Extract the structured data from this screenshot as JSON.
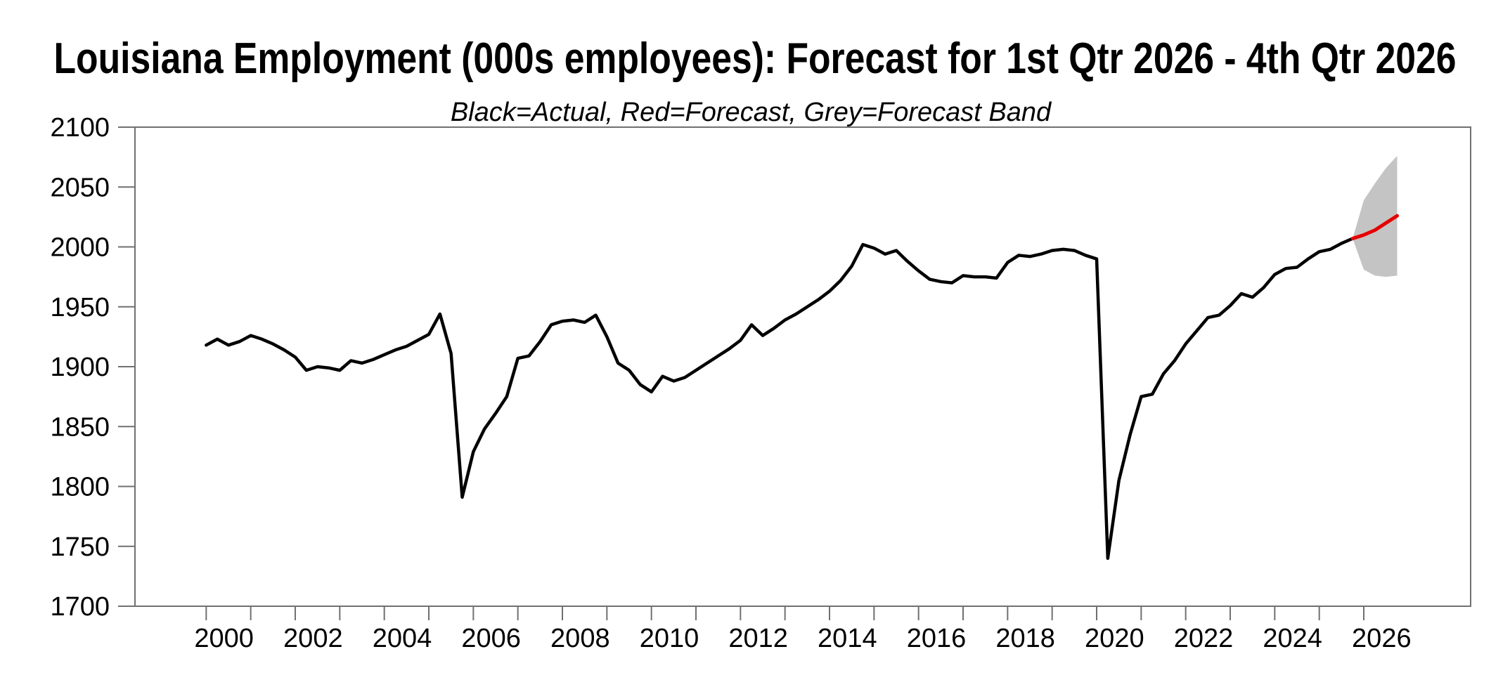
{
  "window": {
    "background": "#ffffff"
  },
  "styles": {
    "frame_color": "#707070",
    "tick_color": "#707070",
    "text_color": "#000000",
    "actual_color": "#000000",
    "forecast_color": "#e60000",
    "band_color": "#c4c4c4"
  },
  "chart_data": {
    "type": "line",
    "title": "Louisiana Employment (000s employees): Forecast for 1st Qtr 2026 - 4th Qtr 2026",
    "subtitle": "Black=Actual, Red=Forecast, Grey=Forecast Band",
    "unit": "thousands of employees",
    "frequency": "quarterly",
    "grid": false,
    "legend_position": "none",
    "x_axis": {
      "domain": [
        1998.4,
        2028.4
      ],
      "tick_year_start": 2000,
      "tick_year_end": 2026,
      "label_years": [
        2000,
        2002,
        2004,
        2006,
        2008,
        2010,
        2012,
        2014,
        2016,
        2018,
        2020,
        2022,
        2024,
        2026
      ],
      "tick_labels": [
        "2000",
        "2002",
        "2004",
        "2006",
        "2008",
        "2010",
        "2012",
        "2014",
        "2016",
        "2018",
        "2020",
        "2022",
        "2024",
        "2026"
      ]
    },
    "y_axis": {
      "lim": [
        1700,
        2100
      ],
      "tick_step": 50,
      "tick_labels": [
        "1700",
        "1750",
        "1800",
        "1850",
        "1900",
        "1950",
        "2000",
        "2050",
        "2100"
      ]
    },
    "series": [
      {
        "id": "actual",
        "name": "Actual",
        "color_key": "actual_color",
        "start": "2000Q1",
        "values": [
          1918,
          1923,
          1918,
          1921,
          1926,
          1923,
          1919,
          1914,
          1908,
          1897,
          1900,
          1899,
          1897,
          1905,
          1903,
          1906,
          1910,
          1914,
          1917,
          1922,
          1927,
          1944,
          1911,
          1791,
          1829,
          1848,
          1861,
          1875,
          1907,
          1909,
          1921,
          1935,
          1938,
          1939,
          1937,
          1943,
          1925,
          1903,
          1897,
          1885,
          1879,
          1892,
          1888,
          1891,
          1897,
          1903,
          1909,
          1915,
          1922,
          1935,
          1926,
          1932,
          1939,
          1944,
          1950,
          1956,
          1963,
          1972,
          1984,
          2002,
          1999,
          1994,
          1997,
          1988,
          1980,
          1973,
          1971,
          1970,
          1976,
          1975,
          1975,
          1974,
          1987,
          1993,
          1992,
          1994,
          1997,
          1998,
          1997,
          1993,
          1990,
          1740,
          1805,
          1843,
          1875,
          1877,
          1894,
          1905,
          1919,
          1930,
          1941,
          1943,
          1951,
          1961,
          1958,
          1966,
          1977,
          1982,
          1983,
          1990,
          1996,
          1998,
          2003,
          2007
        ]
      },
      {
        "id": "forecast",
        "name": "Forecast",
        "color_key": "forecast_color",
        "start": "2025Q4",
        "values": [
          2007,
          2010,
          2014,
          2020,
          2026
        ]
      },
      {
        "id": "forecast_band",
        "name": "Forecast Band",
        "color_key": "band_color",
        "start": "2025Q4",
        "upper": [
          2007,
          2039,
          2053,
          2066,
          2076
        ],
        "lower": [
          2007,
          1981,
          1976,
          1975,
          1976
        ]
      }
    ]
  }
}
